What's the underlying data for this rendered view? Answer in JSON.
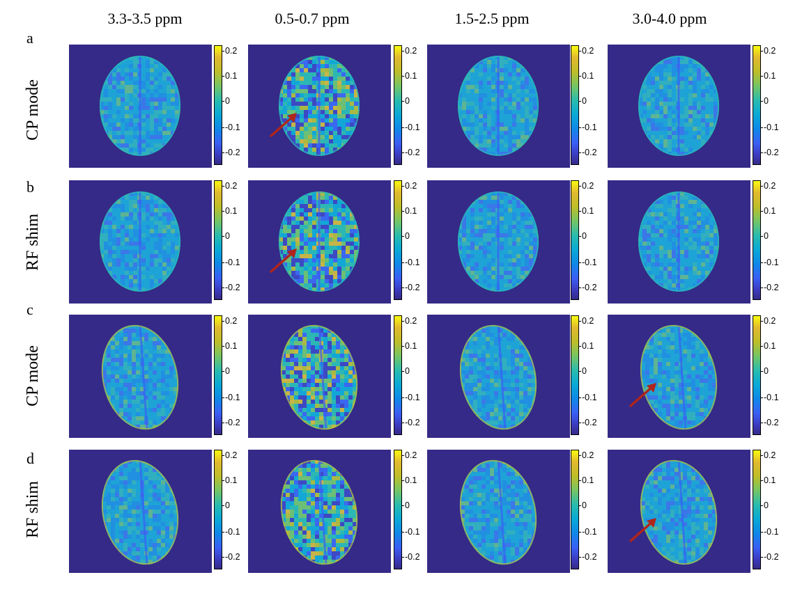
{
  "columns": [
    "3.3-3.5 ppm",
    "0.5-0.7 ppm",
    "1.5-2.5 ppm",
    "3.0-4.0 ppm"
  ],
  "rows": [
    {
      "letter": "a",
      "label": "CP mode"
    },
    {
      "letter": "b",
      "label": "RF shim"
    },
    {
      "letter": "c",
      "label": "CP mode"
    },
    {
      "letter": "d",
      "label": "RF shim"
    }
  ],
  "colorbar_ticks": [
    "0.2",
    "0.1",
    "0",
    "-0.1",
    "-0.2"
  ],
  "colorbar_range": [
    -0.25,
    0.22
  ],
  "colormap": "parula",
  "colors": {
    "background": "#352a87",
    "brain_base": "#3e9bd6",
    "arrow": "#b0251c"
  },
  "arrows": [
    {
      "row": 0,
      "col": 1
    },
    {
      "row": 1,
      "col": 1
    },
    {
      "row": 2,
      "col": 3
    },
    {
      "row": 3,
      "col": 3
    }
  ]
}
